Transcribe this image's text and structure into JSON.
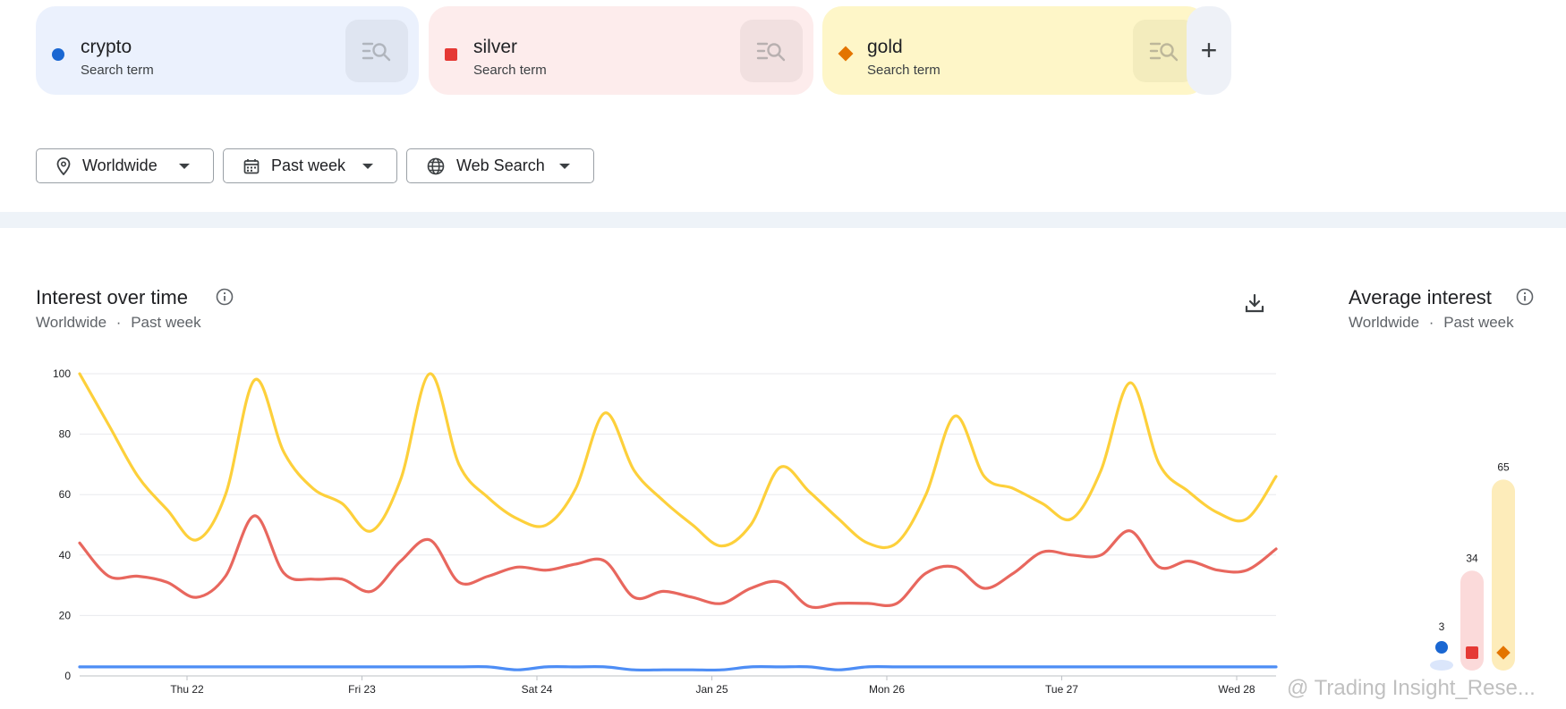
{
  "terms": [
    {
      "name": "crypto",
      "sub": "Search term",
      "color": "#1a67d2",
      "card_bg": "#ebf1fd",
      "btn_bg": "#dfe5f1",
      "shape": "circle"
    },
    {
      "name": "silver",
      "sub": "Search term",
      "color": "#e53935",
      "card_bg": "#fdecec",
      "btn_bg": "#f1e0e0",
      "shape": "square"
    },
    {
      "name": "gold",
      "sub": "Search term",
      "color": "#e37400",
      "card_bg": "#fef6c8",
      "btn_bg": "#f3ecbd",
      "shape": "diamond"
    }
  ],
  "add_term": {
    "label": "+"
  },
  "filters": {
    "region": "Worldwide",
    "period": "Past week",
    "source": "Web Search"
  },
  "interest_over_time": {
    "title": "Interest over time",
    "sub_region": "Worldwide",
    "sub_sep": "·",
    "sub_period": "Past week",
    "download_icon": "download-icon",
    "info_icon": "info-icon"
  },
  "average_interest": {
    "title": "Average interest",
    "sub_region": "Worldwide",
    "sub_sep": "·",
    "sub_period": "Past week"
  },
  "watermark": "@ Trading Insight_Rese...",
  "chart_data": [
    {
      "type": "line",
      "title": "Interest over time",
      "ylim": [
        0,
        100
      ],
      "yticks": [
        "100",
        "80",
        "60",
        "40",
        "20",
        "0"
      ],
      "xticks": [
        "Thu 22",
        "Fri 23",
        "Sat 24",
        "Jan 25",
        "Mon 26",
        "Tue 27",
        "Wed 28"
      ],
      "grid": true,
      "series": [
        {
          "name": "gold",
          "color": "#fdd03b",
          "values": [
            100,
            83,
            66,
            55,
            45,
            60,
            98,
            74,
            62,
            57,
            48,
            65,
            100,
            70,
            59,
            52,
            50,
            62,
            87,
            68,
            58,
            50,
            43,
            50,
            69,
            61,
            52,
            44,
            44,
            60,
            86,
            66,
            62,
            57,
            52,
            68,
            97,
            70,
            61,
            54,
            52,
            66
          ]
        },
        {
          "name": "silver",
          "color": "#e8675e",
          "values": [
            44,
            33,
            33,
            31,
            26,
            33,
            53,
            34,
            32,
            32,
            28,
            38,
            45,
            31,
            33,
            36,
            35,
            37,
            38,
            26,
            28,
            26,
            24,
            29,
            31,
            23,
            24,
            24,
            24,
            34,
            36,
            29,
            34,
            41,
            40,
            40,
            48,
            36,
            38,
            35,
            35,
            42
          ]
        },
        {
          "name": "crypto",
          "color": "#4d8df5",
          "values": [
            3,
            3,
            3,
            3,
            3,
            3,
            3,
            3,
            3,
            3,
            3,
            3,
            3,
            3,
            3,
            2,
            3,
            3,
            3,
            2,
            2,
            2,
            2,
            3,
            3,
            3,
            2,
            3,
            3,
            3,
            3,
            3,
            3,
            3,
            3,
            3,
            3,
            3,
            3,
            3,
            3,
            3
          ]
        }
      ]
    },
    {
      "type": "bar",
      "title": "Average interest",
      "categories": [
        "crypto",
        "silver",
        "gold"
      ],
      "values": [
        3,
        34,
        65
      ],
      "value_labels": [
        "3",
        "34",
        "65"
      ],
      "colors": [
        "#1a67d2",
        "#e53935",
        "#e37400"
      ],
      "bar_bg": [
        "#dbe6fb",
        "#fbdada",
        "#fdecba"
      ]
    }
  ]
}
